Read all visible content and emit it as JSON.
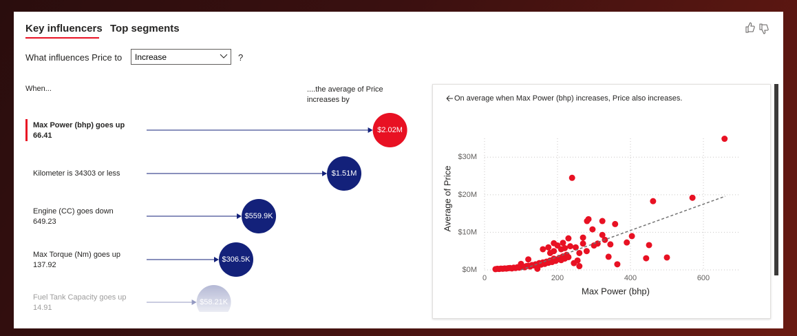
{
  "tabs": [
    "Key influencers",
    "Top segments"
  ],
  "question": {
    "prefix": "What influences Price to",
    "selected": "Increase",
    "suffix": "?"
  },
  "influencers": {
    "column_left": "When...",
    "column_right": "....the average of Price increases by",
    "color_top": "#e81123",
    "color": "#13217a",
    "items": [
      {
        "text": "Max Power (bhp) goes up",
        "detail": "66.41",
        "value": 2020000,
        "value_label": "$2.02M"
      },
      {
        "text": "Kilometer is 34303 or less",
        "value": 1510000,
        "value_label": "$1.51M"
      },
      {
        "text": "Engine (CC) goes down",
        "detail": "649.23",
        "value": 559900,
        "value_label": "$559.9K"
      },
      {
        "text": "Max Torque (Nm) goes up",
        "detail": "137.92",
        "value": 306500,
        "value_label": "$306.5K"
      },
      {
        "text": "Fuel Tank Capacity goes up",
        "detail": "14.91",
        "value": 58210,
        "value_label": "$58.21K"
      }
    ]
  },
  "chart_data": {
    "type": "scatter",
    "title": "On average when Max Power (bhp) increases, Price also increases.",
    "xlabel": "Max Power (bhp)",
    "ylabel": "Average of Price",
    "xlim": [
      0,
      700
    ],
    "xticks": [
      0,
      200,
      400,
      600
    ],
    "ylim": [
      0,
      35000000
    ],
    "yticks": [
      {
        "value": 0,
        "label": "$0M"
      },
      {
        "value": 10000000,
        "label": "$10M"
      },
      {
        "value": 20000000,
        "label": "$20M"
      },
      {
        "value": 30000000,
        "label": "$30M"
      }
    ],
    "grid": true,
    "color": "#e81123",
    "x": [
      30,
      35,
      40,
      45,
      50,
      55,
      60,
      65,
      70,
      75,
      80,
      85,
      90,
      95,
      100,
      105,
      110,
      115,
      120,
      125,
      130,
      135,
      140,
      145,
      150,
      155,
      160,
      165,
      170,
      175,
      180,
      185,
      190,
      195,
      200,
      205,
      210,
      215,
      220,
      225,
      230,
      160,
      175,
      180,
      190,
      200,
      210,
      220,
      235,
      250,
      260,
      270,
      280,
      245,
      255,
      190,
      230,
      240,
      270,
      281,
      296,
      285,
      323,
      323,
      310,
      330,
      358,
      345,
      340,
      364,
      390,
      404,
      443,
      451,
      462,
      500,
      570,
      658,
      145,
      120,
      100,
      260,
      215,
      300
    ],
    "values": [
      200000,
      300000,
      250000,
      350000,
      300000,
      400000,
      350000,
      450000,
      500000,
      400000,
      600000,
      500000,
      700000,
      600000,
      800000,
      900000,
      700000,
      1000000,
      1100000,
      900000,
      1300000,
      1200000,
      1500000,
      1100000,
      1800000,
      1400000,
      2000000,
      1600000,
      2200000,
      1900000,
      2500000,
      2100000,
      3000000,
      2400000,
      2800000,
      3200000,
      2600000,
      3600000,
      3000000,
      4000000,
      3400000,
      5500000,
      6000000,
      4500000,
      5000000,
      6500000,
      5500000,
      5800000,
      6300000,
      6000000,
      4500000,
      7000000,
      5000000,
      1800000,
      2500000,
      7100000,
      8400000,
      24500000,
      8600000,
      13000000,
      10800000,
      13500000,
      13000000,
      9300000,
      7000000,
      8000000,
      12200000,
      6800000,
      3500000,
      1500000,
      7300000,
      9000000,
      3100000,
      6600000,
      18300000,
      3300000,
      19200000,
      34900000,
      300000,
      2800000,
      1600000,
      1000000,
      7200000,
      6500000
    ],
    "trend": {
      "color": "#707070",
      "x": [
        100,
        660
      ],
      "values": [
        0,
        19600000
      ]
    }
  }
}
